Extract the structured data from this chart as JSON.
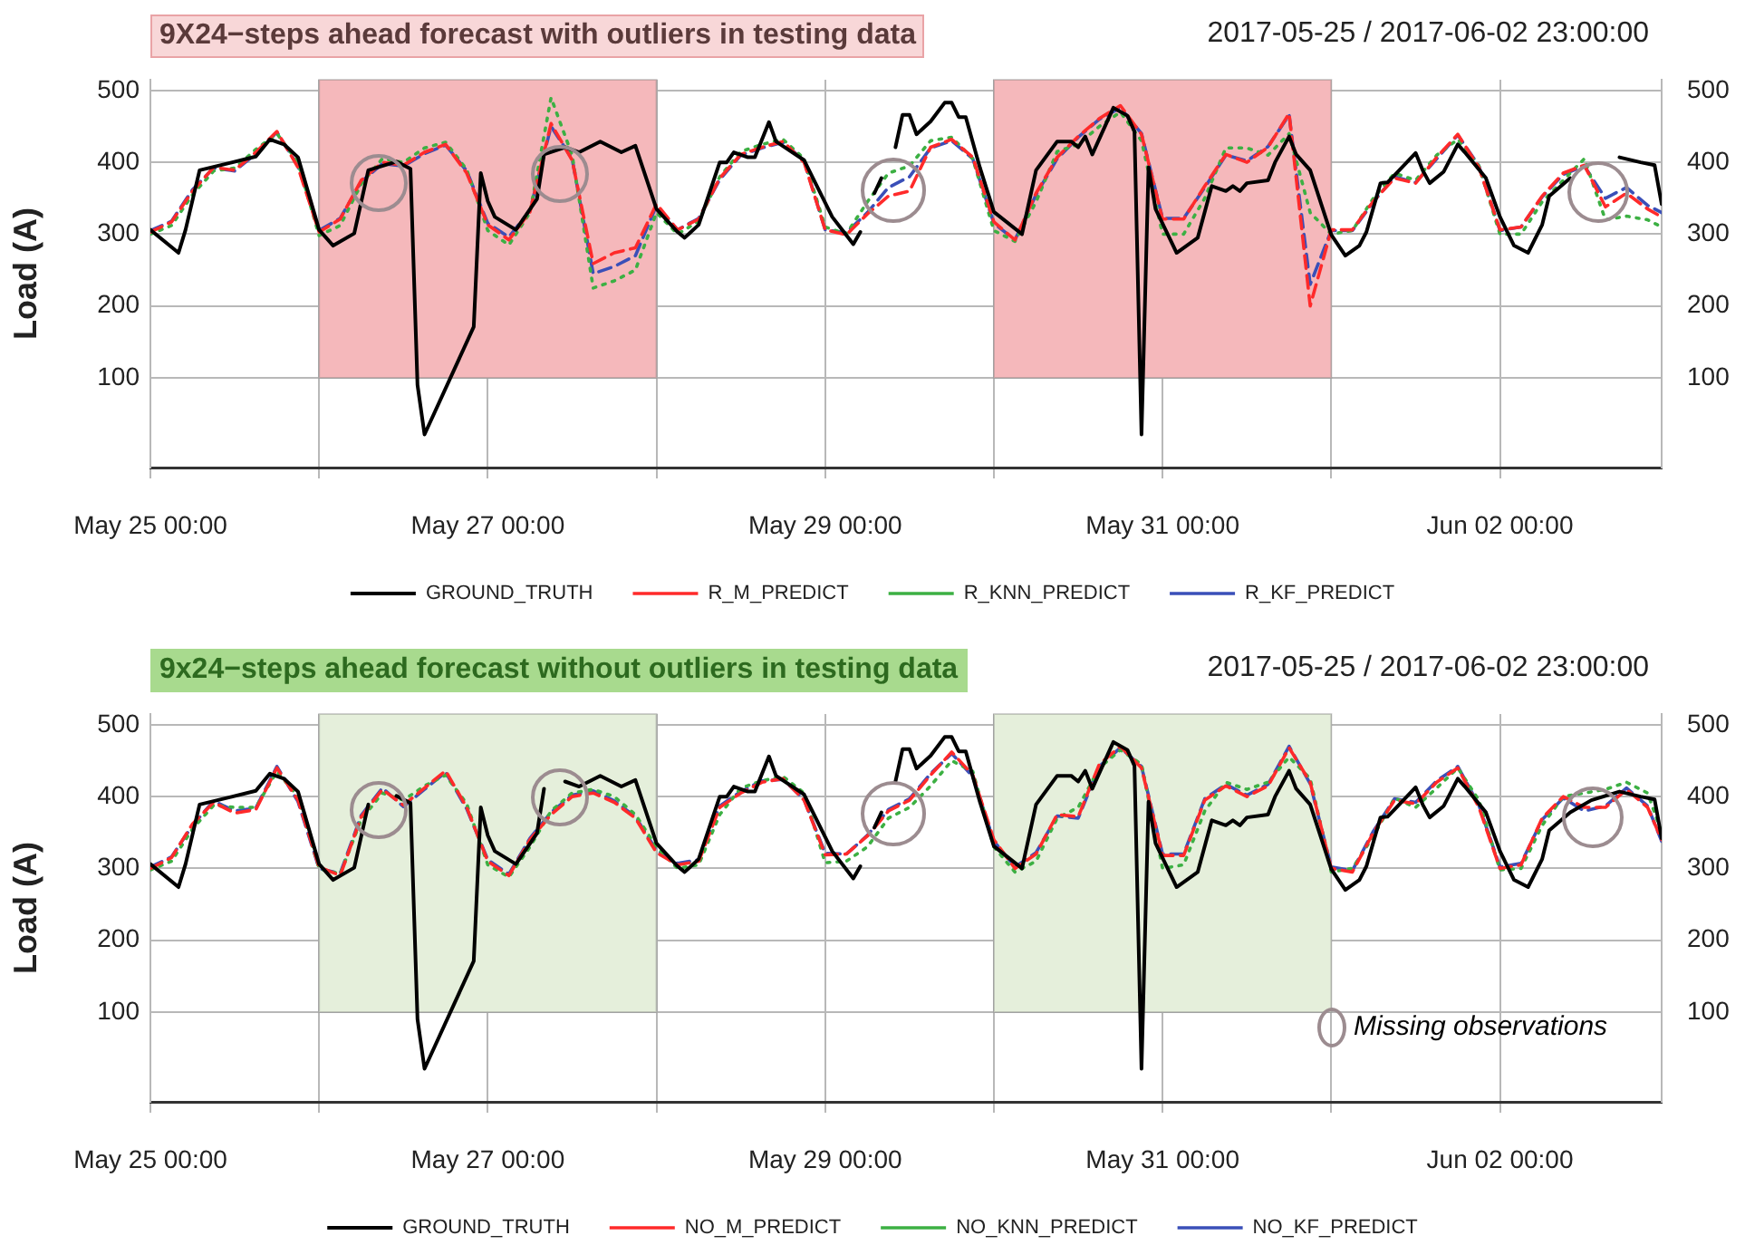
{
  "chart_data": [
    {
      "type": "line",
      "title": "9X24−steps ahead forecast with outliers in testing data",
      "subtitle": "2017-05-25 / 2017-06-02 23:00:00",
      "ylabel": "Load (A)",
      "x": [
        "2017-05-25T00:00",
        "2017-05-25T03:00",
        "2017-05-25T06:00",
        "2017-05-25T09:00",
        "2017-05-25T12:00",
        "2017-05-25T15:00",
        "2017-05-25T18:00",
        "2017-05-25T21:00",
        "2017-05-26T00:00",
        "2017-05-26T03:00",
        "2017-05-26T06:00",
        "2017-05-26T09:00",
        "2017-05-26T12:00",
        "2017-05-26T15:00",
        "2017-05-26T18:00",
        "2017-05-26T21:00",
        "2017-05-27T00:00",
        "2017-05-27T03:00",
        "2017-05-27T06:00",
        "2017-05-27T09:00",
        "2017-05-27T12:00",
        "2017-05-27T15:00",
        "2017-05-27T18:00",
        "2017-05-27T21:00",
        "2017-05-28T00:00",
        "2017-05-28T03:00",
        "2017-05-28T06:00",
        "2017-05-28T09:00",
        "2017-05-28T12:00",
        "2017-05-28T15:00",
        "2017-05-28T18:00",
        "2017-05-28T21:00",
        "2017-05-29T00:00",
        "2017-05-29T03:00",
        "2017-05-29T06:00",
        "2017-05-29T09:00",
        "2017-05-29T12:00",
        "2017-05-29T15:00",
        "2017-05-29T18:00",
        "2017-05-29T21:00",
        "2017-05-30T00:00",
        "2017-05-30T03:00",
        "2017-05-30T06:00",
        "2017-05-30T09:00",
        "2017-05-30T12:00",
        "2017-05-30T15:00",
        "2017-05-30T18:00",
        "2017-05-30T21:00",
        "2017-05-31T00:00",
        "2017-05-31T03:00",
        "2017-05-31T06:00",
        "2017-05-31T09:00",
        "2017-05-31T12:00",
        "2017-05-31T15:00",
        "2017-05-31T18:00",
        "2017-05-31T21:00",
        "2017-06-01T00:00",
        "2017-06-01T03:00",
        "2017-06-01T06:00",
        "2017-06-01T09:00",
        "2017-06-01T12:00",
        "2017-06-01T15:00",
        "2017-06-01T18:00",
        "2017-06-01T21:00",
        "2017-06-02T00:00",
        "2017-06-02T03:00",
        "2017-06-02T06:00",
        "2017-06-02T09:00",
        "2017-06-02T12:00",
        "2017-06-02T15:00",
        "2017-06-02T18:00",
        "2017-06-02T21:00",
        "2017-06-02T23:00"
      ],
      "series": [
        {
          "name": "GROUND_TRUTH",
          "color": "#000000",
          "line_style": "solid",
          "x": [
            "2017-05-25T00:00",
            "2017-05-25T04:00",
            "2017-05-25T05:00",
            "2017-05-25T07:00",
            "2017-05-25T15:00",
            "2017-05-25T17:00",
            "2017-05-25T19:00",
            "2017-05-25T21:00",
            "2017-05-26T00:00",
            "2017-05-26T02:00",
            "2017-05-26T05:00",
            "2017-05-26T07:00",
            "2017-05-26T11:00",
            "2017-05-26T13:00",
            "2017-05-26T14:00",
            "2017-05-26T15:00",
            "2017-05-26T22:00",
            "2017-05-26T23:00",
            "2017-05-27T00:00",
            "2017-05-27T01:00",
            "2017-05-27T04:00",
            "2017-05-27T07:00",
            "2017-05-27T08:00",
            "2017-05-27T11:00",
            "2017-05-27T13:00",
            "2017-05-27T16:00",
            "2017-05-27T19:00",
            "2017-05-27T21:00",
            "2017-05-28T00:00",
            "2017-05-28T03:00",
            "2017-05-28T04:00",
            "2017-05-28T06:00",
            "2017-05-28T09:00",
            "2017-05-28T10:00",
            "2017-05-28T11:00",
            "2017-05-28T13:00",
            "2017-05-28T14:00",
            "2017-05-28T16:00",
            "2017-05-28T17:00",
            "2017-05-28T21:00",
            "2017-05-29T01:00",
            "2017-05-29T04:00",
            "2017-05-29T05:00",
            "2017-05-29T06:00",
            "2017-05-29T07:00",
            "2017-05-29T08:00",
            "2017-05-29T09:00",
            "2017-05-29T10:00",
            "2017-05-29T11:00",
            "2017-05-29T12:00",
            "2017-05-29T13:00",
            "2017-05-29T15:00",
            "2017-05-29T17:00",
            "2017-05-29T18:00",
            "2017-05-29T19:00",
            "2017-05-29T20:00",
            "2017-05-29T22:00",
            "2017-05-30T00:00",
            "2017-05-30T04:00",
            "2017-05-30T06:00",
            "2017-05-30T09:00",
            "2017-05-30T11:00",
            "2017-05-30T12:00",
            "2017-05-30T13:00",
            "2017-05-30T14:00",
            "2017-05-30T17:00",
            "2017-05-30T19:00",
            "2017-05-30T20:00",
            "2017-05-30T21:00",
            "2017-05-30T22:00",
            "2017-05-30T23:00",
            "2017-05-31T02:00",
            "2017-05-31T05:00",
            "2017-05-31T07:00",
            "2017-05-31T09:00",
            "2017-05-31T10:00",
            "2017-05-31T11:00",
            "2017-05-31T12:00",
            "2017-05-31T15:00",
            "2017-05-31T16:00",
            "2017-05-31T18:00",
            "2017-05-31T19:00",
            "2017-05-31T21:00",
            "2017-06-01T00:00",
            "2017-06-01T02:00",
            "2017-06-01T04:00",
            "2017-06-01T05:00",
            "2017-06-01T07:00",
            "2017-06-01T08:00",
            "2017-06-01T09:00",
            "2017-06-01T12:00",
            "2017-06-01T13:00",
            "2017-06-01T14:00",
            "2017-06-01T16:00",
            "2017-06-01T18:00",
            "2017-06-01T19:00",
            "2017-06-01T22:00",
            "2017-06-02T00:00",
            "2017-06-02T02:00",
            "2017-06-02T04:00",
            "2017-06-02T06:00",
            "2017-06-02T07:00",
            "2017-06-02T10:00",
            "2017-06-02T13:00",
            "2017-06-02T17:00",
            "2017-06-02T20:00",
            "2017-06-02T22:00",
            "2017-06-02T23:00"
          ],
          "values": [
            306,
            274,
            306,
            389,
            408,
            432,
            425,
            407,
            306,
            284,
            301,
            389,
            401,
            391,
            90,
            21,
            171,
            385,
            346,
            324,
            306,
            349,
            411,
            421,
            414,
            429,
            414,
            423,
            335,
            303,
            295,
            313,
            400,
            400,
            414,
            407,
            407,
            456,
            429,
            403,
            324,
            286,
            303,
            null,
            357,
            378,
            null,
            421,
            466,
            466,
            439,
            457,
            483,
            483,
            463,
            463,
            393,
            331,
            300,
            389,
            429,
            429,
            421,
            436,
            411,
            476,
            465,
            443,
            21,
            393,
            335,
            274,
            295,
            367,
            360,
            367,
            360,
            371,
            375,
            400,
            436,
            411,
            389,
            299,
            270,
            284,
            303,
            371,
            372,
            382,
            413,
            389,
            371,
            387,
            425,
            414,
            378,
            324,
            284,
            274,
            313,
            353,
            378,
            null,
            407,
            400,
            396,
            342
          ]
        },
        {
          "name": "R_M_PREDICT",
          "color": "#ff2a2a",
          "line_style": "dashed",
          "values": [
            303,
            317,
            360,
            393,
            389,
            414,
            443,
            393,
            303,
            321,
            375,
            400,
            396,
            414,
            425,
            385,
            313,
            292,
            331,
            454,
            403,
            259,
            274,
            281,
            342,
            306,
            321,
            378,
            411,
            421,
            429,
            400,
            306,
            299,
            328,
            353,
            360,
            421,
            432,
            407,
            317,
            292,
            357,
            407,
            436,
            461,
            479,
            439,
            321,
            321,
            367,
            411,
            400,
            421,
            468,
            200,
            306,
            306,
            346,
            378,
            371,
            407,
            439,
            393,
            306,
            310,
            353,
            385,
            396,
            338,
            357,
            335,
            324
          ]
        },
        {
          "name": "R_KNN_PREDICT",
          "color": "#3cb043",
          "line_style": "dotted",
          "values": [
            300,
            312,
            355,
            388,
            392,
            418,
            440,
            400,
            298,
            312,
            370,
            405,
            400,
            420,
            428,
            390,
            305,
            285,
            330,
            490,
            410,
            225,
            235,
            250,
            330,
            300,
            318,
            380,
            415,
            425,
            432,
            405,
            310,
            300,
            345,
            385,
            395,
            430,
            435,
            405,
            305,
            290,
            345,
            415,
            425,
            450,
            470,
            430,
            300,
            300,
            350,
            420,
            420,
            410,
            440,
            330,
            300,
            305,
            350,
            385,
            375,
            410,
            432,
            395,
            300,
            300,
            345,
            375,
            405,
            320,
            325,
            320,
            310
          ]
        },
        {
          "name": "R_KF_PREDICT",
          "color": "#3a4fb8",
          "line_style": "dashed",
          "values": [
            305,
            318,
            362,
            392,
            388,
            412,
            442,
            395,
            305,
            322,
            373,
            398,
            395,
            412,
            424,
            388,
            315,
            296,
            333,
            450,
            405,
            245,
            255,
            270,
            340,
            306,
            322,
            376,
            410,
            420,
            428,
            402,
            306,
            302,
            330,
            365,
            380,
            420,
            430,
            405,
            315,
            292,
            355,
            405,
            435,
            460,
            476,
            440,
            322,
            322,
            365,
            410,
            402,
            422,
            466,
            230,
            305,
            305,
            345,
            380,
            372,
            405,
            438,
            395,
            305,
            310,
            352,
            383,
            395,
            350,
            365,
            340,
            330
          ]
        }
      ],
      "xlim": [
        "2017-05-25T00:00",
        "2017-06-02T23:00"
      ],
      "xticks": [
        {
          "value": "2017-05-25T00:00",
          "label": "May 25 00:00"
        },
        {
          "value": "2017-05-26T00:00",
          "label": null
        },
        {
          "value": "2017-05-27T00:00",
          "label": "May 27 00:00"
        },
        {
          "value": "2017-05-28T00:00",
          "label": null
        },
        {
          "value": "2017-05-29T00:00",
          "label": "May 29 00:00"
        },
        {
          "value": "2017-05-30T00:00",
          "label": null
        },
        {
          "value": "2017-05-31T00:00",
          "label": "May 31 00:00"
        },
        {
          "value": "2017-06-01T00:00",
          "label": null
        },
        {
          "value": "2017-06-02T00:00",
          "label": "Jun 02 00:00"
        }
      ],
      "ylim": [
        -25,
        515
      ],
      "yticks": [
        100,
        200,
        300,
        400,
        500
      ],
      "y2lim": [
        -25,
        515
      ],
      "y2ticks": [
        100,
        200,
        300,
        400,
        500
      ],
      "grid": true,
      "legend": "bottom",
      "bands": [
        {
          "axis": "x",
          "from": "2017-05-26T00:00",
          "to": "2017-05-28T00:00",
          "color": "#f5b8bb"
        },
        {
          "axis": "x",
          "from": "2017-05-30T00:00",
          "to": "2017-06-01T00:00",
          "color": "#f5b8bb"
        }
      ]
    },
    {
      "type": "line",
      "title": "9x24−steps ahead forecast without outliers in testing data",
      "subtitle": "2017-05-25 / 2017-06-02 23:00:00",
      "ylabel": "Load (A)",
      "x": [
        "2017-05-25T00:00",
        "2017-05-25T03:00",
        "2017-05-25T06:00",
        "2017-05-25T09:00",
        "2017-05-25T12:00",
        "2017-05-25T15:00",
        "2017-05-25T18:00",
        "2017-05-25T21:00",
        "2017-05-26T00:00",
        "2017-05-26T03:00",
        "2017-05-26T06:00",
        "2017-05-26T09:00",
        "2017-05-26T12:00",
        "2017-05-26T15:00",
        "2017-05-26T18:00",
        "2017-05-26T21:00",
        "2017-05-27T00:00",
        "2017-05-27T03:00",
        "2017-05-27T06:00",
        "2017-05-27T09:00",
        "2017-05-27T12:00",
        "2017-05-27T15:00",
        "2017-05-27T18:00",
        "2017-05-27T21:00",
        "2017-05-28T00:00",
        "2017-05-28T03:00",
        "2017-05-28T06:00",
        "2017-05-28T09:00",
        "2017-05-28T12:00",
        "2017-05-28T15:00",
        "2017-05-28T18:00",
        "2017-05-28T21:00",
        "2017-05-29T00:00",
        "2017-05-29T03:00",
        "2017-05-29T06:00",
        "2017-05-29T09:00",
        "2017-05-29T12:00",
        "2017-05-29T15:00",
        "2017-05-29T18:00",
        "2017-05-29T21:00",
        "2017-05-30T00:00",
        "2017-05-30T03:00",
        "2017-05-30T06:00",
        "2017-05-30T09:00",
        "2017-05-30T12:00",
        "2017-05-30T15:00",
        "2017-05-30T18:00",
        "2017-05-30T21:00",
        "2017-05-31T00:00",
        "2017-05-31T03:00",
        "2017-05-31T06:00",
        "2017-05-31T09:00",
        "2017-05-31T12:00",
        "2017-05-31T15:00",
        "2017-05-31T18:00",
        "2017-05-31T21:00",
        "2017-06-01T00:00",
        "2017-06-01T03:00",
        "2017-06-01T06:00",
        "2017-06-01T09:00",
        "2017-06-01T12:00",
        "2017-06-01T15:00",
        "2017-06-01T18:00",
        "2017-06-01T21:00",
        "2017-06-02T00:00",
        "2017-06-02T03:00",
        "2017-06-02T06:00",
        "2017-06-02T09:00",
        "2017-06-02T12:00",
        "2017-06-02T15:00",
        "2017-06-02T18:00",
        "2017-06-02T21:00",
        "2017-06-02T23:00"
      ],
      "series": [
        {
          "name": "GROUND_TRUTH",
          "color": "#000000",
          "line_style": "solid",
          "x": [
            "2017-05-25T00:00",
            "2017-05-25T04:00",
            "2017-05-25T05:00",
            "2017-05-25T07:00",
            "2017-05-25T15:00",
            "2017-05-25T17:00",
            "2017-05-25T19:00",
            "2017-05-25T21:00",
            "2017-05-26T00:00",
            "2017-05-26T02:00",
            "2017-05-26T05:00",
            "2017-05-26T07:00",
            "2017-05-26T09:00",
            "2017-05-26T11:00",
            "2017-05-26T13:00",
            "2017-05-26T14:00",
            "2017-05-26T15:00",
            "2017-05-26T22:00",
            "2017-05-26T23:00",
            "2017-05-27T00:00",
            "2017-05-27T01:00",
            "2017-05-27T04:00",
            "2017-05-27T07:00",
            "2017-05-27T08:00",
            "2017-05-27T10:00",
            "2017-05-27T11:00",
            "2017-05-27T13:00",
            "2017-05-27T16:00",
            "2017-05-27T19:00",
            "2017-05-27T21:00",
            "2017-05-28T00:00",
            "2017-05-28T03:00",
            "2017-05-28T04:00",
            "2017-05-28T06:00",
            "2017-05-28T09:00",
            "2017-05-28T10:00",
            "2017-05-28T11:00",
            "2017-05-28T13:00",
            "2017-05-28T14:00",
            "2017-05-28T16:00",
            "2017-05-28T17:00",
            "2017-05-28T21:00",
            "2017-05-29T01:00",
            "2017-05-29T04:00",
            "2017-05-29T05:00",
            "2017-05-29T06:00",
            "2017-05-29T07:00",
            "2017-05-29T08:00",
            "2017-05-29T09:00",
            "2017-05-29T10:00",
            "2017-05-29T11:00",
            "2017-05-29T12:00",
            "2017-05-29T13:00",
            "2017-05-29T15:00",
            "2017-05-29T17:00",
            "2017-05-29T18:00",
            "2017-05-29T19:00",
            "2017-05-29T20:00",
            "2017-05-29T22:00",
            "2017-05-30T00:00",
            "2017-05-30T04:00",
            "2017-05-30T06:00",
            "2017-05-30T09:00",
            "2017-05-30T11:00",
            "2017-05-30T12:00",
            "2017-05-30T13:00",
            "2017-05-30T14:00",
            "2017-05-30T17:00",
            "2017-05-30T19:00",
            "2017-05-30T20:00",
            "2017-05-30T21:00",
            "2017-05-30T22:00",
            "2017-05-30T23:00",
            "2017-05-31T02:00",
            "2017-05-31T05:00",
            "2017-05-31T07:00",
            "2017-05-31T09:00",
            "2017-05-31T10:00",
            "2017-05-31T11:00",
            "2017-05-31T12:00",
            "2017-05-31T15:00",
            "2017-05-31T16:00",
            "2017-05-31T18:00",
            "2017-05-31T19:00",
            "2017-05-31T21:00",
            "2017-06-01T00:00",
            "2017-06-01T02:00",
            "2017-06-01T04:00",
            "2017-06-01T05:00",
            "2017-06-01T07:00",
            "2017-06-01T08:00",
            "2017-06-01T09:00",
            "2017-06-01T12:00",
            "2017-06-01T13:00",
            "2017-06-01T14:00",
            "2017-06-01T16:00",
            "2017-06-01T18:00",
            "2017-06-01T19:00",
            "2017-06-01T22:00",
            "2017-06-02T00:00",
            "2017-06-02T02:00",
            "2017-06-02T04:00",
            "2017-06-02T06:00",
            "2017-06-02T07:00",
            "2017-06-02T10:00",
            "2017-06-02T13:00",
            "2017-06-02T17:00",
            "2017-06-02T20:00",
            "2017-06-02T22:00",
            "2017-06-02T23:00"
          ],
          "values": [
            306,
            274,
            306,
            389,
            408,
            432,
            425,
            407,
            306,
            284,
            301,
            389,
            null,
            401,
            391,
            90,
            21,
            171,
            385,
            346,
            324,
            306,
            349,
            411,
            null,
            421,
            414,
            429,
            414,
            423,
            335,
            303,
            295,
            313,
            400,
            400,
            414,
            407,
            407,
            456,
            429,
            403,
            324,
            286,
            303,
            null,
            357,
            378,
            null,
            421,
            466,
            466,
            439,
            457,
            483,
            483,
            463,
            463,
            393,
            331,
            300,
            389,
            429,
            429,
            421,
            436,
            411,
            476,
            465,
            443,
            21,
            393,
            335,
            274,
            295,
            367,
            360,
            367,
            360,
            371,
            375,
            400,
            436,
            411,
            389,
            299,
            270,
            284,
            303,
            371,
            372,
            382,
            413,
            389,
            371,
            387,
            425,
            414,
            378,
            324,
            284,
            274,
            313,
            353,
            378,
            395,
            407,
            400,
            396,
            342
          ]
        },
        {
          "name": "NO_M_PREDICT",
          "color": "#ff2a2a",
          "line_style": "dashed",
          "values": [
            300,
            315,
            362,
            392,
            377,
            382,
            440,
            395,
            302,
            290,
            372,
            410,
            388,
            412,
            436,
            385,
            310,
            290,
            340,
            375,
            400,
            405,
            392,
            370,
            322,
            305,
            310,
            385,
            405,
            420,
            425,
            395,
            319,
            320,
            345,
            380,
            395,
            430,
            462,
            430,
            340,
            300,
            320,
            375,
            372,
            445,
            470,
            440,
            318,
            318,
            395,
            415,
            400,
            415,
            468,
            420,
            300,
            295,
            350,
            395,
            390,
            420,
            440,
            385,
            300,
            305,
            370,
            400,
            385,
            385,
            410,
            385,
            340
          ]
        },
        {
          "name": "NO_KNN_PREDICT",
          "color": "#3cb043",
          "line_style": "dotted",
          "values": [
            298,
            310,
            355,
            388,
            385,
            385,
            435,
            400,
            300,
            292,
            368,
            405,
            395,
            415,
            430,
            390,
            305,
            288,
            330,
            380,
            405,
            410,
            400,
            375,
            330,
            300,
            305,
            375,
            412,
            422,
            428,
            405,
            308,
            310,
            330,
            370,
            385,
            415,
            450,
            435,
            330,
            295,
            310,
            370,
            385,
            440,
            465,
            445,
            300,
            305,
            380,
            420,
            410,
            420,
            455,
            425,
            295,
            300,
            345,
            398,
            385,
            412,
            440,
            395,
            298,
            300,
            360,
            400,
            405,
            410,
            420,
            405,
            350
          ]
        },
        {
          "name": "NO_KF_PREDICT",
          "color": "#3a4fb8",
          "line_style": "dashed",
          "values": [
            302,
            316,
            360,
            394,
            380,
            384,
            442,
            393,
            300,
            293,
            374,
            412,
            386,
            410,
            434,
            383,
            312,
            292,
            342,
            378,
            402,
            408,
            394,
            372,
            325,
            307,
            312,
            387,
            407,
            422,
            424,
            396,
            321,
            320,
            346,
            382,
            397,
            432,
            460,
            428,
            338,
            302,
            322,
            373,
            370,
            442,
            468,
            442,
            320,
            320,
            397,
            417,
            402,
            417,
            470,
            418,
            302,
            297,
            352,
            397,
            392,
            422,
            442,
            388,
            302,
            307,
            368,
            398,
            380,
            387,
            412,
            387,
            338
          ]
        }
      ],
      "xlim": [
        "2017-05-25T00:00",
        "2017-06-02T23:00"
      ],
      "xticks": [
        {
          "value": "2017-05-25T00:00",
          "label": "May 25 00:00"
        },
        {
          "value": "2017-05-26T00:00",
          "label": null
        },
        {
          "value": "2017-05-27T00:00",
          "label": "May 27 00:00"
        },
        {
          "value": "2017-05-28T00:00",
          "label": null
        },
        {
          "value": "2017-05-29T00:00",
          "label": "May 29 00:00"
        },
        {
          "value": "2017-05-30T00:00",
          "label": null
        },
        {
          "value": "2017-05-31T00:00",
          "label": "May 31 00:00"
        },
        {
          "value": "2017-06-01T00:00",
          "label": null
        },
        {
          "value": "2017-06-02T00:00",
          "label": "Jun 02 00:00"
        }
      ],
      "ylim": [
        -25,
        515
      ],
      "yticks": [
        100,
        200,
        300,
        400,
        500
      ],
      "y2lim": [
        -25,
        515
      ],
      "y2ticks": [
        100,
        200,
        300,
        400,
        500
      ],
      "grid": true,
      "legend": "bottom",
      "bands": [
        {
          "axis": "x",
          "from": "2017-05-26T00:00",
          "to": "2017-05-28T00:00",
          "color": "#e5efdb"
        },
        {
          "axis": "x",
          "from": "2017-05-30T00:00",
          "to": "2017-06-01T00:00",
          "color": "#e5efdb"
        }
      ],
      "annotations": [
        "Missing observations"
      ]
    }
  ]
}
